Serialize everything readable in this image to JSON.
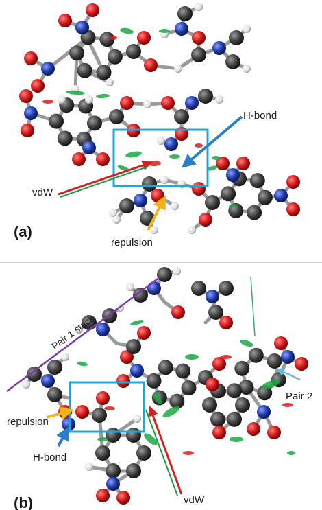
{
  "panels": {
    "a": {
      "label": "(a)"
    },
    "b": {
      "label": "(b)"
    }
  },
  "annotations": {
    "a_hbond": "H-bond",
    "a_vdw": "vdW",
    "a_repulsion": "repulsion",
    "b_pair1": "Pair 1 stack",
    "b_pair2": "Pair 2",
    "b_repulsion": "repulsion",
    "b_hbond": "H-bond",
    "b_vdw": "vdW"
  },
  "colors": {
    "carbon": "#3a3a3a",
    "oxygen": "#d11a1a",
    "nitrogen": "#1f3aa8",
    "hydrogen": "#e8e8e8",
    "bond": "#9a9a9a",
    "highlight_box": "#1fa7d8",
    "hbond_arrow": "#2a7fc8",
    "repulsion_arrow": "#f2b21a",
    "vdw_arrow_outer": "#d42020",
    "vdw_arrow_inner": "#1e9a4a",
    "pair1_line": "#7a3aa8",
    "nci_green": "#1ea845",
    "nci_red": "#cc2222",
    "divider": "#9a9a9a"
  }
}
